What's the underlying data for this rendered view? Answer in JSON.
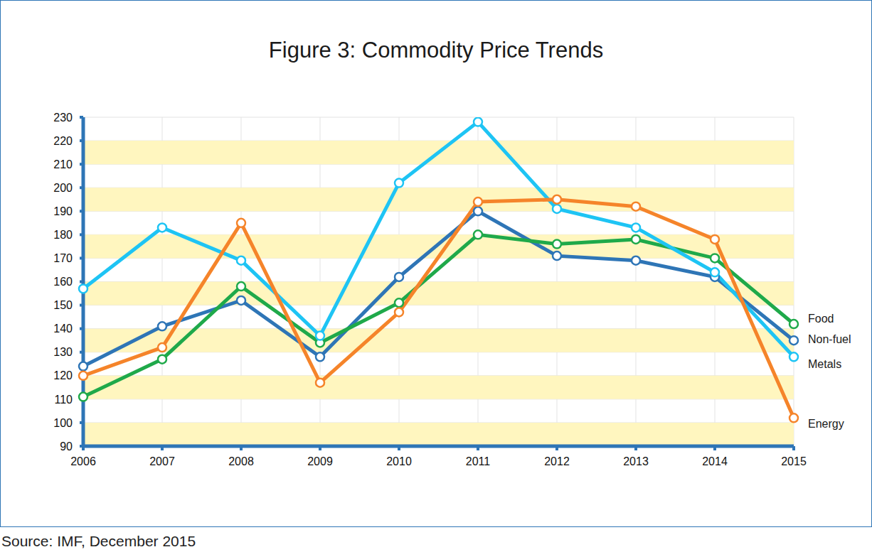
{
  "chart_data": {
    "type": "line",
    "title": "Figure 3: Commodity Price Trends",
    "source": "Source: IMF, December 2015",
    "categories": [
      "2006",
      "2007",
      "2008",
      "2009",
      "2010",
      "2011",
      "2012",
      "2013",
      "2014",
      "2015"
    ],
    "series": [
      {
        "name": "Non-fuel",
        "color": "#2e75b6",
        "marker": "circle",
        "values": [
          124,
          141,
          152,
          128,
          162,
          190,
          171,
          169,
          162,
          135
        ]
      },
      {
        "name": "Food",
        "color": "#1fa94a",
        "marker": "circle",
        "values": [
          111,
          127,
          158,
          134,
          151,
          180,
          176,
          178,
          170,
          142
        ]
      },
      {
        "name": "Metals",
        "color": "#1ec4f4",
        "marker": "circle",
        "values": [
          157,
          183,
          169,
          137,
          202,
          228,
          191,
          183,
          164,
          128
        ]
      },
      {
        "name": "Energy",
        "color": "#f5842a",
        "marker": "circle",
        "values": [
          120,
          132,
          185,
          117,
          147,
          194,
          195,
          192,
          178,
          102
        ]
      }
    ],
    "ylim": [
      90,
      230
    ],
    "yticks": [
      90,
      100,
      110,
      120,
      130,
      140,
      150,
      160,
      170,
      180,
      190,
      200,
      210,
      220,
      230
    ],
    "grid": true
  }
}
